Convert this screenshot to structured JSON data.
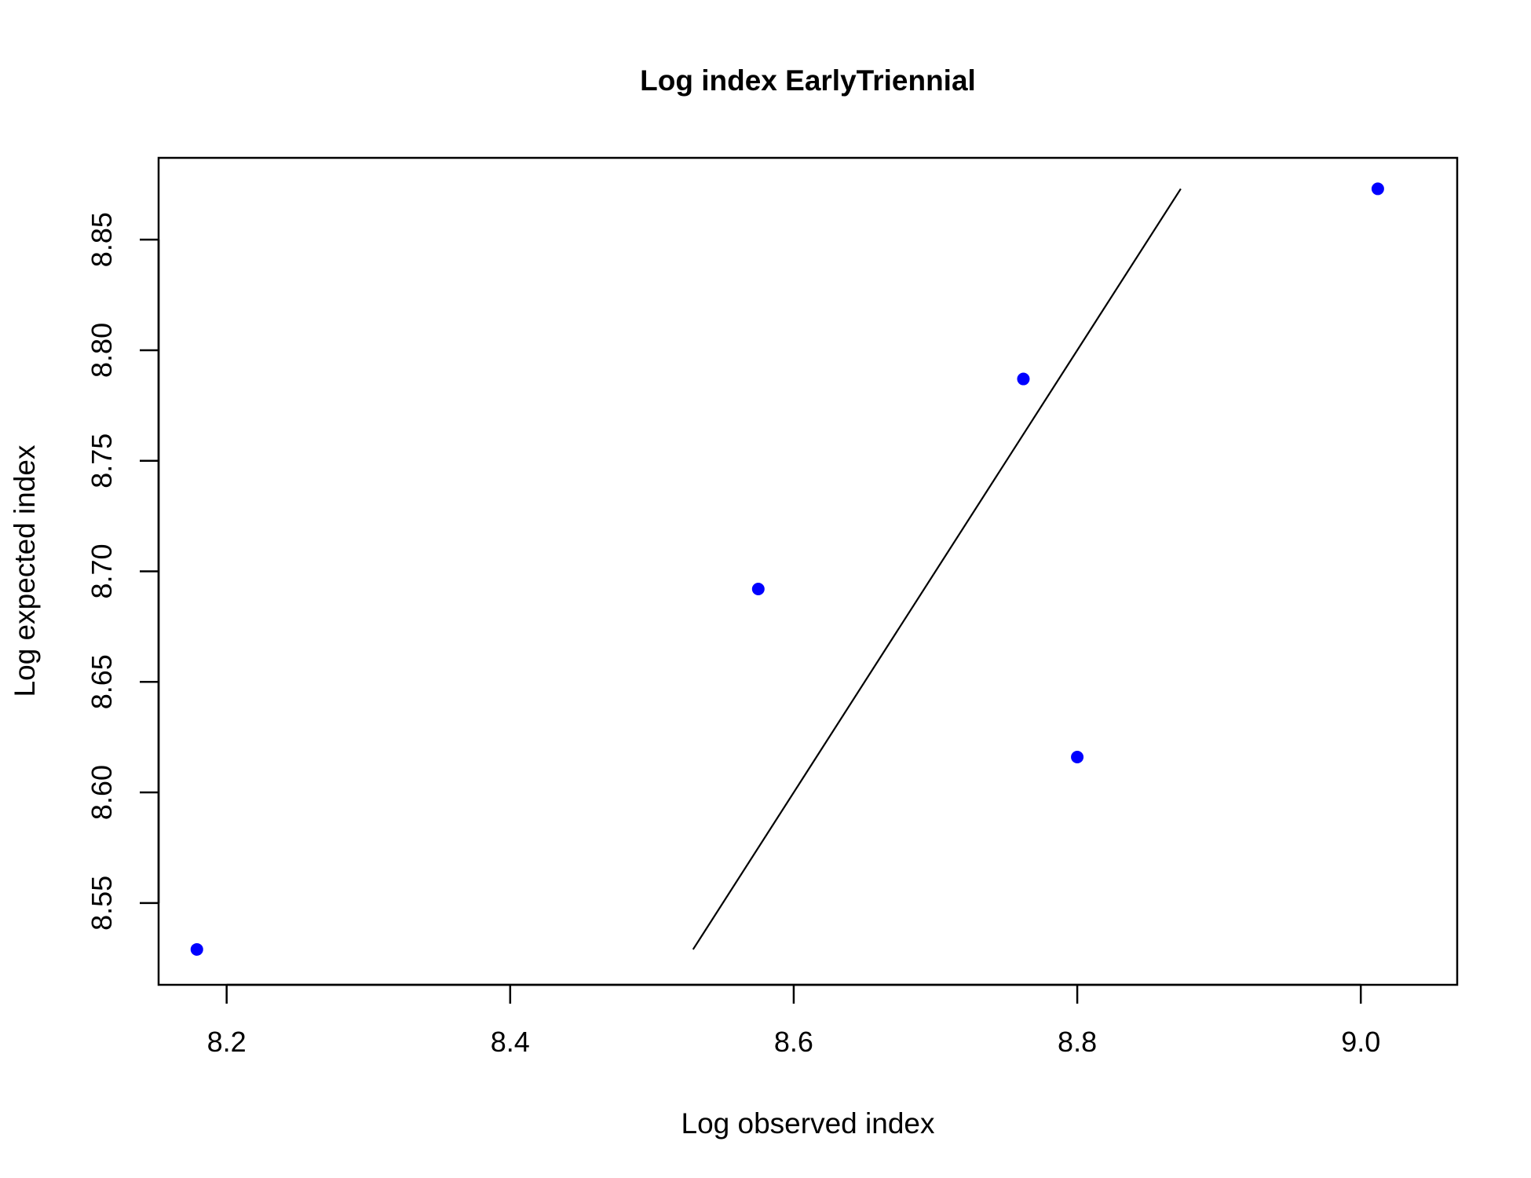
{
  "chart_data": {
    "type": "scatter",
    "title": "Log index EarlyTriennial",
    "xlabel": "Log observed index",
    "ylabel": "Log expected index",
    "xlim": [
      8.152,
      9.068
    ],
    "ylim": [
      8.513,
      8.887
    ],
    "x_ticks": [
      8.2,
      8.4,
      8.6,
      8.8,
      9.0
    ],
    "x_tick_labels": [
      "8.2",
      "8.4",
      "8.6",
      "8.8",
      "9.0"
    ],
    "y_ticks": [
      8.55,
      8.6,
      8.65,
      8.7,
      8.75,
      8.8,
      8.85
    ],
    "y_tick_labels": [
      "8.55",
      "8.60",
      "8.65",
      "8.70",
      "8.75",
      "8.80",
      "8.85"
    ],
    "grid": false,
    "points": {
      "x": [
        8.179,
        8.575,
        8.762,
        8.8,
        9.012
      ],
      "y": [
        8.529,
        8.692,
        8.787,
        8.616,
        8.873
      ],
      "color": "#0000ff"
    },
    "reference_line": {
      "from": [
        8.529,
        8.529
      ],
      "to": [
        8.873,
        8.873
      ],
      "color": "#000000"
    }
  }
}
